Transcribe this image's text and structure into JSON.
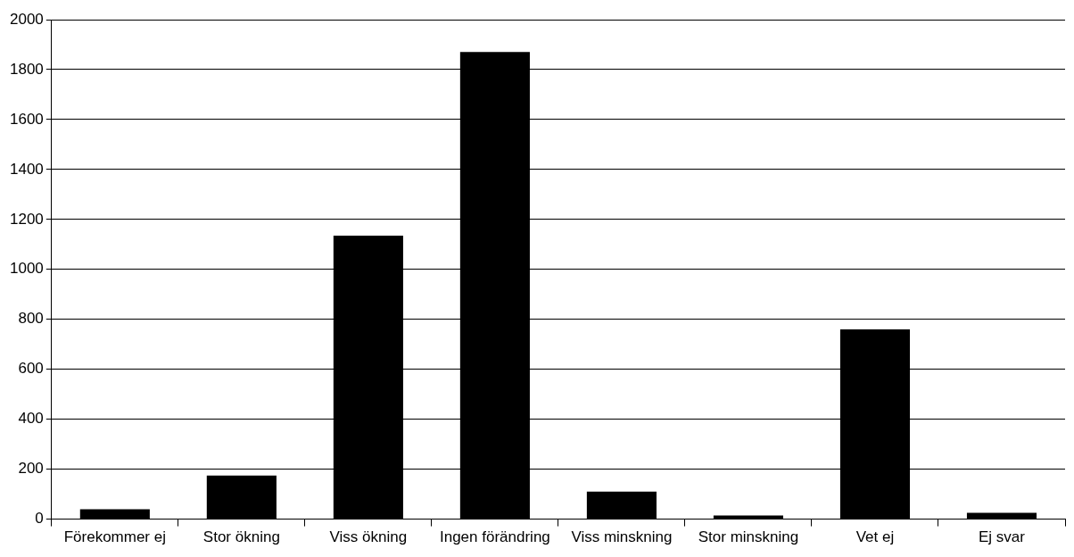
{
  "chart_data": {
    "type": "bar",
    "categories": [
      "Förekommer ej",
      "Stor ökning",
      "Viss ökning",
      "Ingen förändring",
      "Viss minskning",
      "Stor minskning",
      "Vet ej",
      "Ej svar"
    ],
    "values": [
      40,
      175,
      1135,
      1870,
      110,
      15,
      760,
      25
    ],
    "color": "#000000",
    "ylim": [
      0,
      2000
    ],
    "yticks": [
      0,
      200,
      400,
      600,
      800,
      1000,
      1200,
      1400,
      1600,
      1800,
      2000
    ],
    "grid": "y",
    "legend": false
  }
}
